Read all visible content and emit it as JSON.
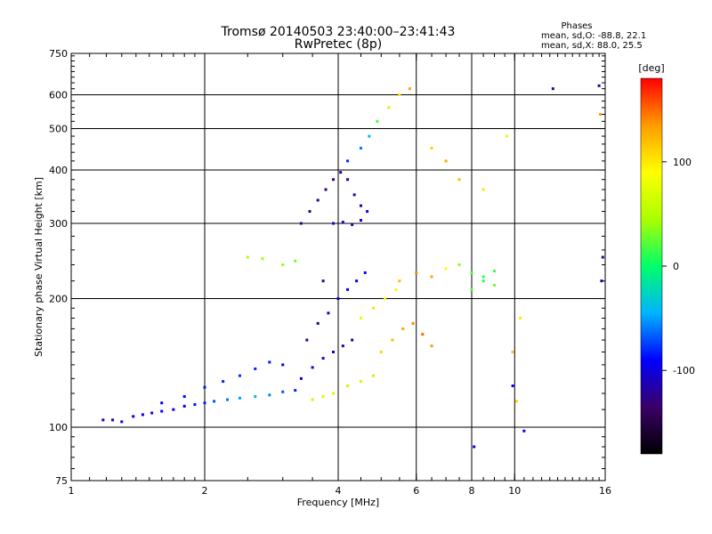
{
  "header": {
    "title": "Tromsø 20140503 23:40:00–23:41:43",
    "subtitle": "RwPretec (8p)"
  },
  "phases_box": {
    "title": "Phases",
    "line_o": "mean, sd,O: -88.8, 22.1",
    "line_x": "mean, sd,X:  88.0, 25.5"
  },
  "chart_data": {
    "type": "scatter",
    "title": "Tromsø 20140503 23:40:00–23:41:43",
    "subtitle": "RwPretec (8p)",
    "xlabel": "Frequency [MHz]",
    "ylabel": "Stationary phase Virtual Height [km]",
    "x_scale": "log",
    "y_scale": "log",
    "xlim": [
      1,
      16
    ],
    "ylim": [
      75,
      750
    ],
    "x_ticks": [
      1,
      2,
      4,
      6,
      8,
      10,
      16
    ],
    "y_ticks": [
      75,
      100,
      200,
      300,
      400,
      500,
      600,
      750
    ],
    "x_grid": [
      2,
      4,
      6,
      8,
      10
    ],
    "y_grid": [
      100,
      200,
      300,
      400,
      500,
      600
    ],
    "grid": true,
    "colorbar": {
      "label": "[deg]",
      "range": [
        -180,
        180
      ],
      "ticks": [
        100,
        0,
        -100
      ],
      "colormap": "rainbow",
      "colors": [
        "#000000",
        "#3a0068",
        "#0000ff",
        "#00b4ff",
        "#00ff6a",
        "#aaff00",
        "#ffff00",
        "#ff9c00",
        "#ff0000"
      ]
    },
    "points": [
      [
        1.18,
        104,
        -100
      ],
      [
        1.24,
        104,
        -105
      ],
      [
        1.3,
        103,
        -98
      ],
      [
        1.38,
        106,
        -102
      ],
      [
        1.45,
        107,
        -95
      ],
      [
        1.52,
        108,
        -100
      ],
      [
        1.6,
        109,
        -92
      ],
      [
        1.7,
        110,
        -95
      ],
      [
        1.8,
        112,
        -90
      ],
      [
        1.9,
        113,
        -85
      ],
      [
        2.0,
        114,
        -82
      ],
      [
        2.1,
        115,
        -70
      ],
      [
        2.25,
        116,
        -60
      ],
      [
        2.4,
        117,
        -50
      ],
      [
        2.6,
        118,
        -40
      ],
      [
        2.8,
        119,
        -55
      ],
      [
        3.0,
        121,
        -70
      ],
      [
        3.2,
        122,
        -80
      ],
      [
        1.6,
        114,
        -95
      ],
      [
        1.8,
        118,
        -88
      ],
      [
        2.0,
        124,
        -85
      ],
      [
        2.2,
        128,
        -80
      ],
      [
        2.4,
        132,
        -78
      ],
      [
        2.6,
        137,
        -82
      ],
      [
        2.8,
        142,
        -85
      ],
      [
        3.0,
        140,
        -90
      ],
      [
        3.5,
        116,
        60
      ],
      [
        3.7,
        118,
        70
      ],
      [
        3.9,
        120,
        65
      ],
      [
        4.2,
        125,
        55
      ],
      [
        4.5,
        128,
        60
      ],
      [
        4.8,
        132,
        50
      ],
      [
        3.3,
        130,
        -100
      ],
      [
        3.5,
        138,
        -105
      ],
      [
        3.7,
        145,
        -110
      ],
      [
        3.9,
        150,
        -108
      ],
      [
        4.1,
        155,
        -112
      ],
      [
        4.3,
        160,
        -115
      ],
      [
        3.4,
        160,
        -120
      ],
      [
        3.6,
        175,
        -118
      ],
      [
        3.8,
        185,
        -110
      ],
      [
        4.0,
        200,
        -105
      ],
      [
        4.2,
        210,
        -95
      ],
      [
        4.4,
        220,
        -100
      ],
      [
        4.6,
        230,
        -90
      ],
      [
        3.7,
        220,
        -115
      ],
      [
        3.3,
        300,
        -125
      ],
      [
        3.45,
        320,
        -130
      ],
      [
        3.6,
        340,
        -128
      ],
      [
        3.75,
        360,
        -130
      ],
      [
        3.9,
        380,
        -125
      ],
      [
        4.05,
        395,
        -128
      ],
      [
        4.2,
        380,
        -120
      ],
      [
        4.35,
        350,
        -118
      ],
      [
        4.5,
        330,
        -115
      ],
      [
        4.65,
        320,
        -110
      ],
      [
        3.9,
        300,
        -110
      ],
      [
        4.1,
        302,
        -108
      ],
      [
        4.3,
        298,
        -112
      ],
      [
        4.5,
        305,
        -100
      ],
      [
        4.2,
        420,
        -80
      ],
      [
        4.5,
        450,
        -60
      ],
      [
        4.7,
        480,
        -40
      ],
      [
        4.9,
        520,
        20
      ],
      [
        5.2,
        560,
        60
      ],
      [
        5.5,
        600,
        100
      ],
      [
        5.8,
        620,
        130
      ],
      [
        5.0,
        150,
        110
      ],
      [
        5.3,
        160,
        120
      ],
      [
        5.6,
        170,
        130
      ],
      [
        5.9,
        175,
        140
      ],
      [
        6.2,
        165,
        150
      ],
      [
        6.5,
        155,
        135
      ],
      [
        5.5,
        220,
        120
      ],
      [
        6.0,
        230,
        140
      ],
      [
        6.5,
        225,
        130
      ],
      [
        7.0,
        235,
        90
      ],
      [
        7.5,
        240,
        40
      ],
      [
        8.0,
        230,
        20
      ],
      [
        8.5,
        220,
        10
      ],
      [
        9.0,
        215,
        30
      ],
      [
        4.5,
        180,
        80
      ],
      [
        4.8,
        190,
        100
      ],
      [
        5.1,
        200,
        90
      ],
      [
        5.4,
        210,
        95
      ],
      [
        6.5,
        450,
        110
      ],
      [
        7.0,
        420,
        130
      ],
      [
        7.5,
        380,
        120
      ],
      [
        8.5,
        360,
        100
      ],
      [
        9.6,
        480,
        80
      ],
      [
        8.0,
        210,
        20
      ],
      [
        8.5,
        225,
        10
      ],
      [
        9.0,
        232,
        15
      ],
      [
        3.0,
        240,
        40
      ],
      [
        3.2,
        245,
        30
      ],
      [
        2.5,
        250,
        50
      ],
      [
        2.7,
        248,
        45
      ],
      [
        9.9,
        125,
        -90
      ],
      [
        10.5,
        98,
        -100
      ],
      [
        8.1,
        90,
        -95
      ],
      [
        15.5,
        630,
        -120
      ],
      [
        15.6,
        540,
        130
      ],
      [
        15.8,
        250,
        -125
      ],
      [
        15.7,
        220,
        -110
      ],
      [
        12.2,
        620,
        -120
      ],
      [
        10.1,
        115,
        110
      ],
      [
        9.9,
        150,
        120
      ],
      [
        10.3,
        180,
        100
      ]
    ]
  }
}
